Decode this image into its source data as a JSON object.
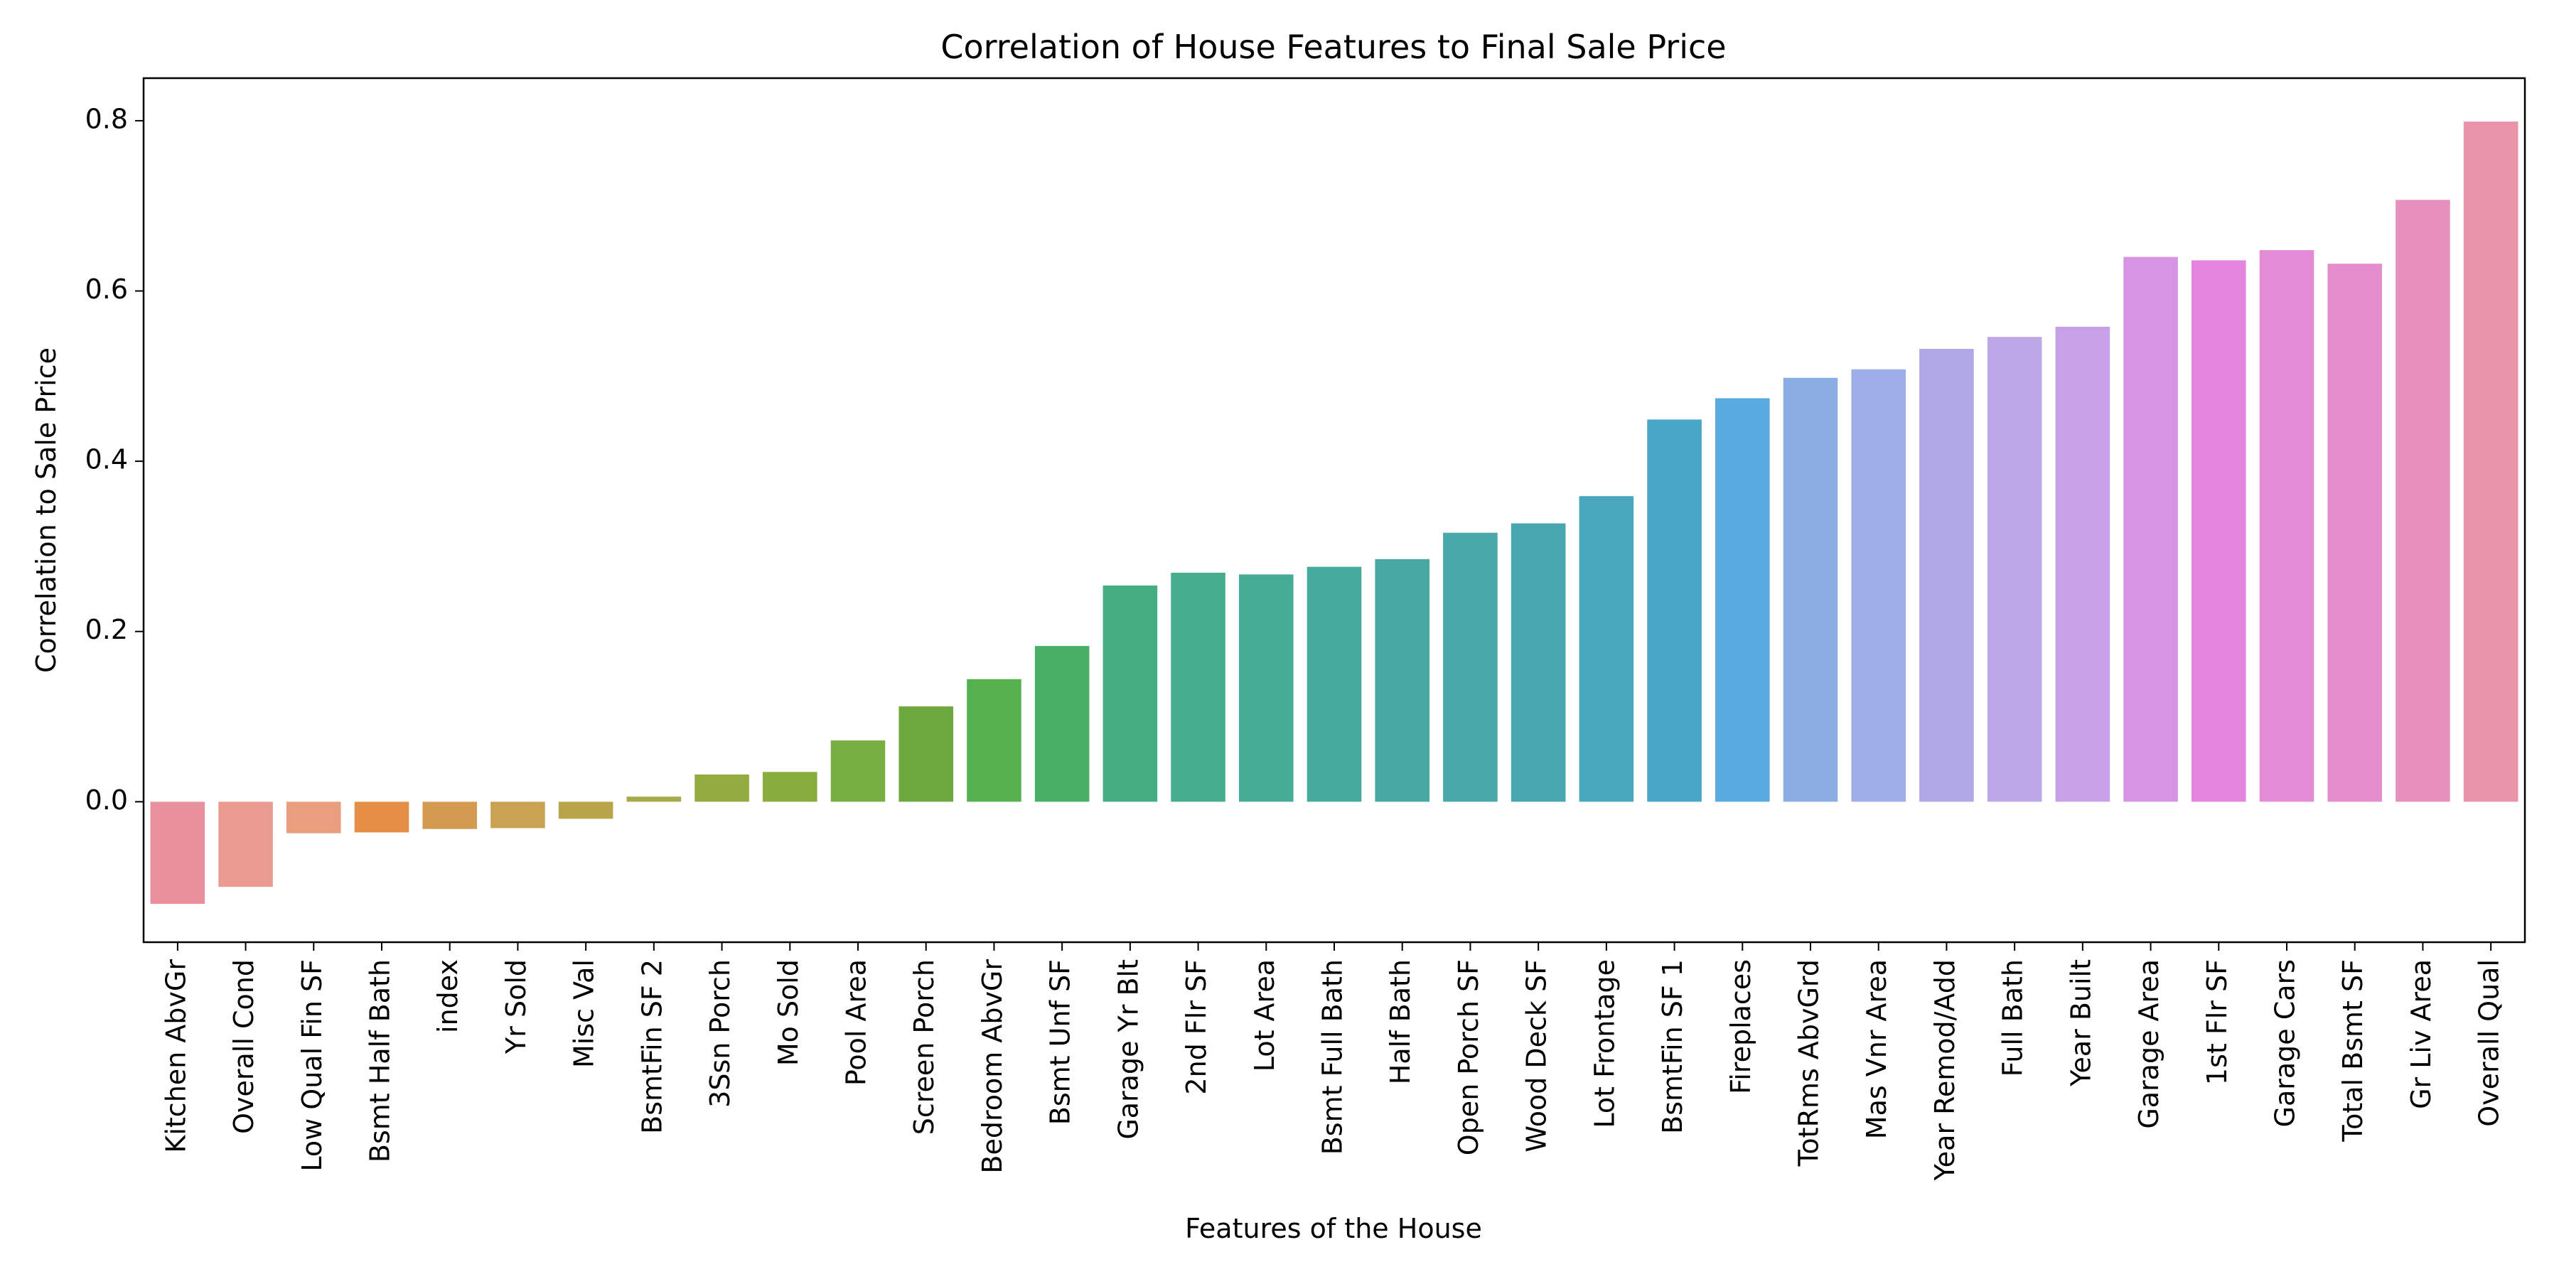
{
  "chart_data": {
    "type": "bar",
    "title": "Correlation of House Features to Final Sale Price",
    "xlabel": "Features of the House",
    "ylabel": "Correlation to Sale Price",
    "ylim": [
      -0.165,
      0.85
    ],
    "yticks": [
      0.0,
      0.2,
      0.4,
      0.6,
      0.8
    ],
    "ytick_labels": [
      "0.0",
      "0.2",
      "0.4",
      "0.6",
      "0.8"
    ],
    "grid": false,
    "legend": "none",
    "categories": [
      "Kitchen AbvGr",
      "Overall Cond",
      "Low Qual Fin SF",
      "Bsmt Half Bath",
      "index",
      "Yr Sold",
      "Misc Val",
      "BsmtFin SF 2",
      "3Ssn Porch",
      "Mo Sold",
      "Pool Area",
      "Screen Porch",
      "Bedroom AbvGr",
      "Bsmt Unf SF",
      "Garage Yr Blt",
      "2nd Flr SF",
      "Lot Area",
      "Bsmt Full Bath",
      "Half Bath",
      "Open Porch SF",
      "Wood Deck SF",
      "Lot Frontage",
      "BsmtFin SF 1",
      "Fireplaces",
      "TotRms AbvGrd",
      "Mas Vnr Area",
      "Year Remod/Add",
      "Full Bath",
      "Year Built",
      "Garage Area",
      "1st Flr SF",
      "Garage Cars",
      "Total Bsmt SF",
      "Gr Liv Area",
      "Overall Qual"
    ],
    "values": [
      -0.12,
      -0.1,
      -0.037,
      -0.036,
      -0.032,
      -0.031,
      -0.02,
      0.006,
      0.032,
      0.035,
      0.072,
      0.112,
      0.144,
      0.183,
      0.254,
      0.269,
      0.267,
      0.276,
      0.285,
      0.316,
      0.327,
      0.359,
      0.449,
      0.474,
      0.498,
      0.508,
      0.532,
      0.546,
      0.558,
      0.64,
      0.636,
      0.648,
      0.632,
      0.707,
      0.799
    ],
    "colors": [
      "#e8919d",
      "#e99b91",
      "#e99e7e",
      "#e48f45",
      "#d29b4f",
      "#c9a252",
      "#b9a549",
      "#a6aa47",
      "#93ab3f",
      "#88ad3c",
      "#78af42",
      "#6ea93e",
      "#55b14d",
      "#4aaf66",
      "#46ad82",
      "#45ac8c",
      "#46ab94",
      "#46aa9c",
      "#47a9a2",
      "#48a8aa",
      "#49a7b1",
      "#49a7bd",
      "#4aa6c9",
      "#59aade",
      "#8bade3",
      "#9faee6",
      "#b0a8e6",
      "#bda7e6",
      "#c6a1e5",
      "#d793e4",
      "#e485e0",
      "#e48bd6",
      "#e58dcd",
      "#e790be",
      "#e994ab"
    ]
  }
}
